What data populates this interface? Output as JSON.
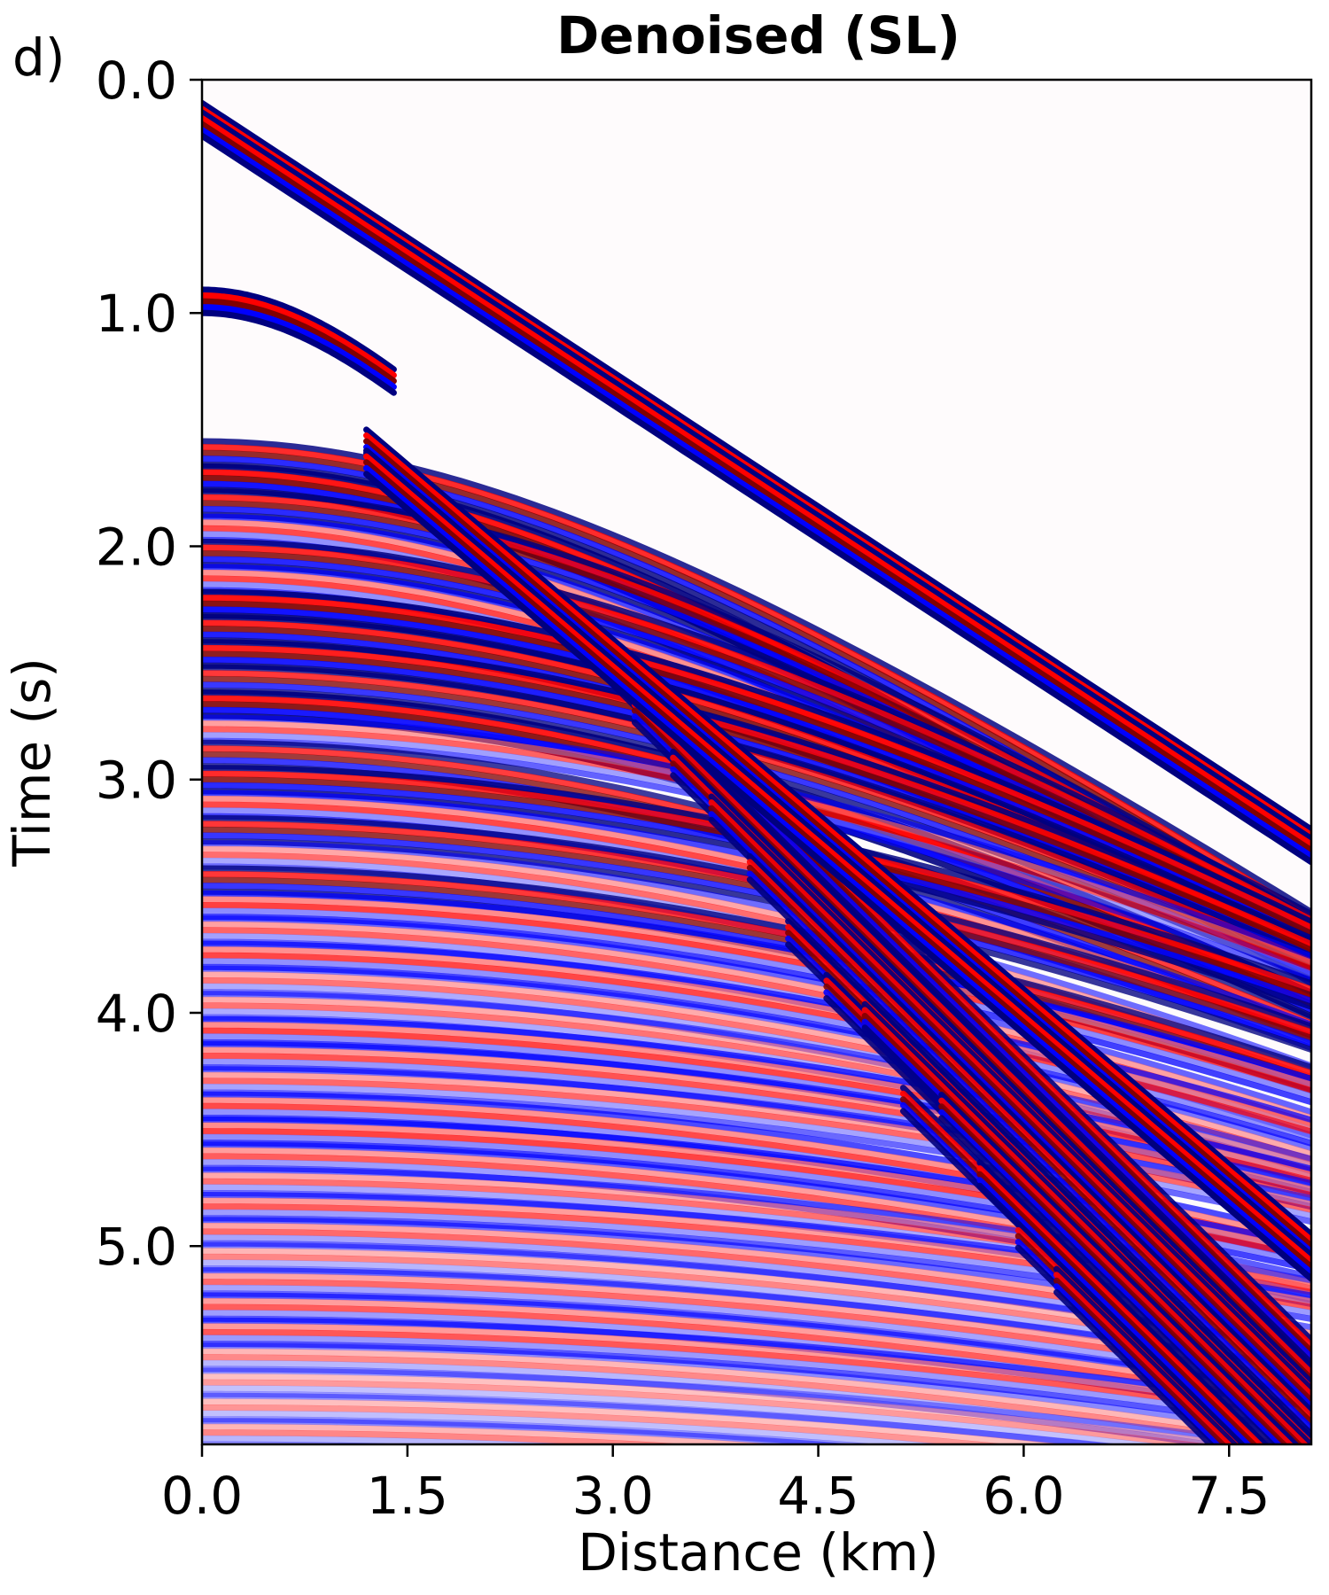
{
  "chart_data": {
    "type": "heatmap",
    "panel_label": "d)",
    "title": "Denoised (SL)",
    "xlabel": "Distance (km)",
    "ylabel": "Time (s)",
    "xlim": [
      0.0,
      8.1
    ],
    "ylim": [
      5.85,
      0.0
    ],
    "y_inverted": true,
    "xticks": [
      0.0,
      1.5,
      3.0,
      4.5,
      6.0,
      7.5
    ],
    "yticks": [
      0.0,
      1.0,
      2.0,
      3.0,
      4.0,
      5.0
    ],
    "xtick_labels": [
      "0.0",
      "1.5",
      "3.0",
      "4.5",
      "6.0",
      "7.5"
    ],
    "ytick_labels": [
      "0.0",
      "1.0",
      "2.0",
      "3.0",
      "4.0",
      "5.0"
    ],
    "colormap": "seismic",
    "colors": {
      "negative": "#00007f",
      "mid_negative": "#0000ff",
      "zero": "#ffffff",
      "mid_positive": "#ff0000",
      "positive": "#7f0000"
    },
    "events": [
      {
        "kind": "direct_arrival",
        "t0": 0.15,
        "slope": 0.62,
        "curvature": 0.0,
        "amplitude": 1.0
      },
      {
        "kind": "refraction",
        "x_start": 1.2,
        "t0": 1.55,
        "velocity_slowness": 0.5,
        "amplitude": 1.0
      },
      {
        "kind": "reflection",
        "t0": 0.95,
        "vrms": 1.6,
        "amplitude": 1.0
      },
      {
        "kind": "reflection_family",
        "t0_min": 1.6,
        "t0_max": 5.8,
        "count": 40,
        "amplitude_decay": 0.35
      }
    ],
    "grid": false,
    "legend": false
  }
}
